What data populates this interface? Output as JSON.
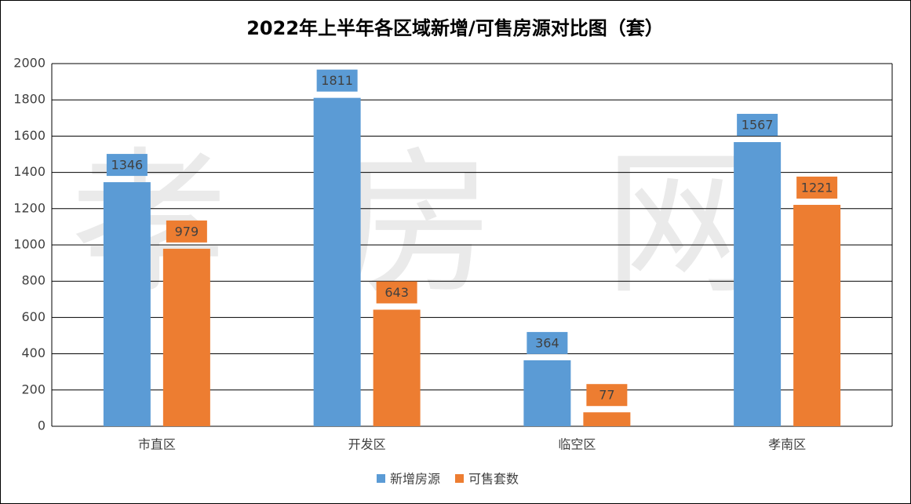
{
  "chart_data": {
    "type": "bar",
    "title": "2022年上半年各区域新增/可售房源对比图（套）",
    "watermark": "孝房网",
    "categories": [
      "市直区",
      "开发区",
      "临空区",
      "孝南区"
    ],
    "series": [
      {
        "name": "新增房源",
        "color": "#5b9bd5",
        "values": [
          1346,
          1811,
          364,
          1567
        ]
      },
      {
        "name": "可售套数",
        "color": "#ed7d31",
        "values": [
          979,
          643,
          77,
          1221
        ]
      }
    ],
    "ylim": [
      0,
      2000
    ],
    "yticks": [
      0,
      200,
      400,
      600,
      800,
      1000,
      1200,
      1400,
      1600,
      1800,
      2000
    ],
    "grid": true,
    "legend": "bottom"
  }
}
